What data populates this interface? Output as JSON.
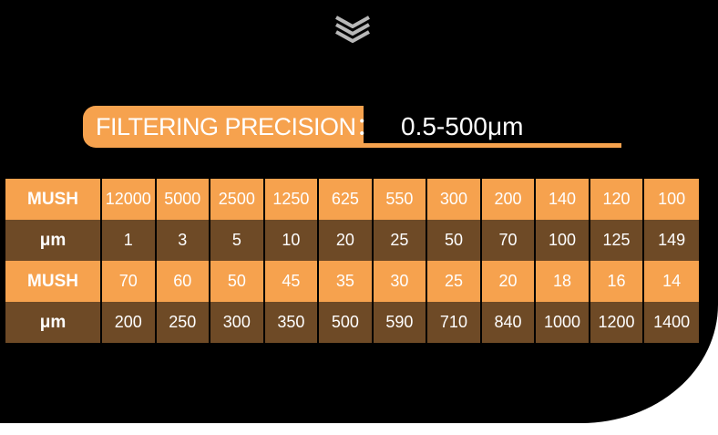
{
  "icons": {
    "scroll_hint": "chevrons-down-icon"
  },
  "colors": {
    "accent": "#f6a24e",
    "row_dark": "#6e4a26",
    "background": "#000000",
    "text": "#ffffff"
  },
  "heading": {
    "label": "FILTERING PRECISION：",
    "value": "0.5-500μm"
  },
  "table": {
    "rows": [
      {
        "style": "light",
        "header": "MUSH",
        "cells": [
          "12000",
          "5000",
          "2500",
          "1250",
          "625",
          "550",
          "300",
          "200",
          "140",
          "120",
          "100"
        ]
      },
      {
        "style": "dark",
        "header": "μm",
        "cells": [
          "1",
          "3",
          "5",
          "10",
          "20",
          "25",
          "50",
          "70",
          "100",
          "125",
          "149"
        ]
      },
      {
        "style": "light",
        "header": "MUSH",
        "cells": [
          "70",
          "60",
          "50",
          "45",
          "35",
          "30",
          "25",
          "20",
          "18",
          "16",
          "14"
        ]
      },
      {
        "style": "dark",
        "header": "μm",
        "cells": [
          "200",
          "250",
          "300",
          "350",
          "500",
          "590",
          "710",
          "840",
          "1000",
          "1200",
          "1400"
        ]
      }
    ]
  }
}
